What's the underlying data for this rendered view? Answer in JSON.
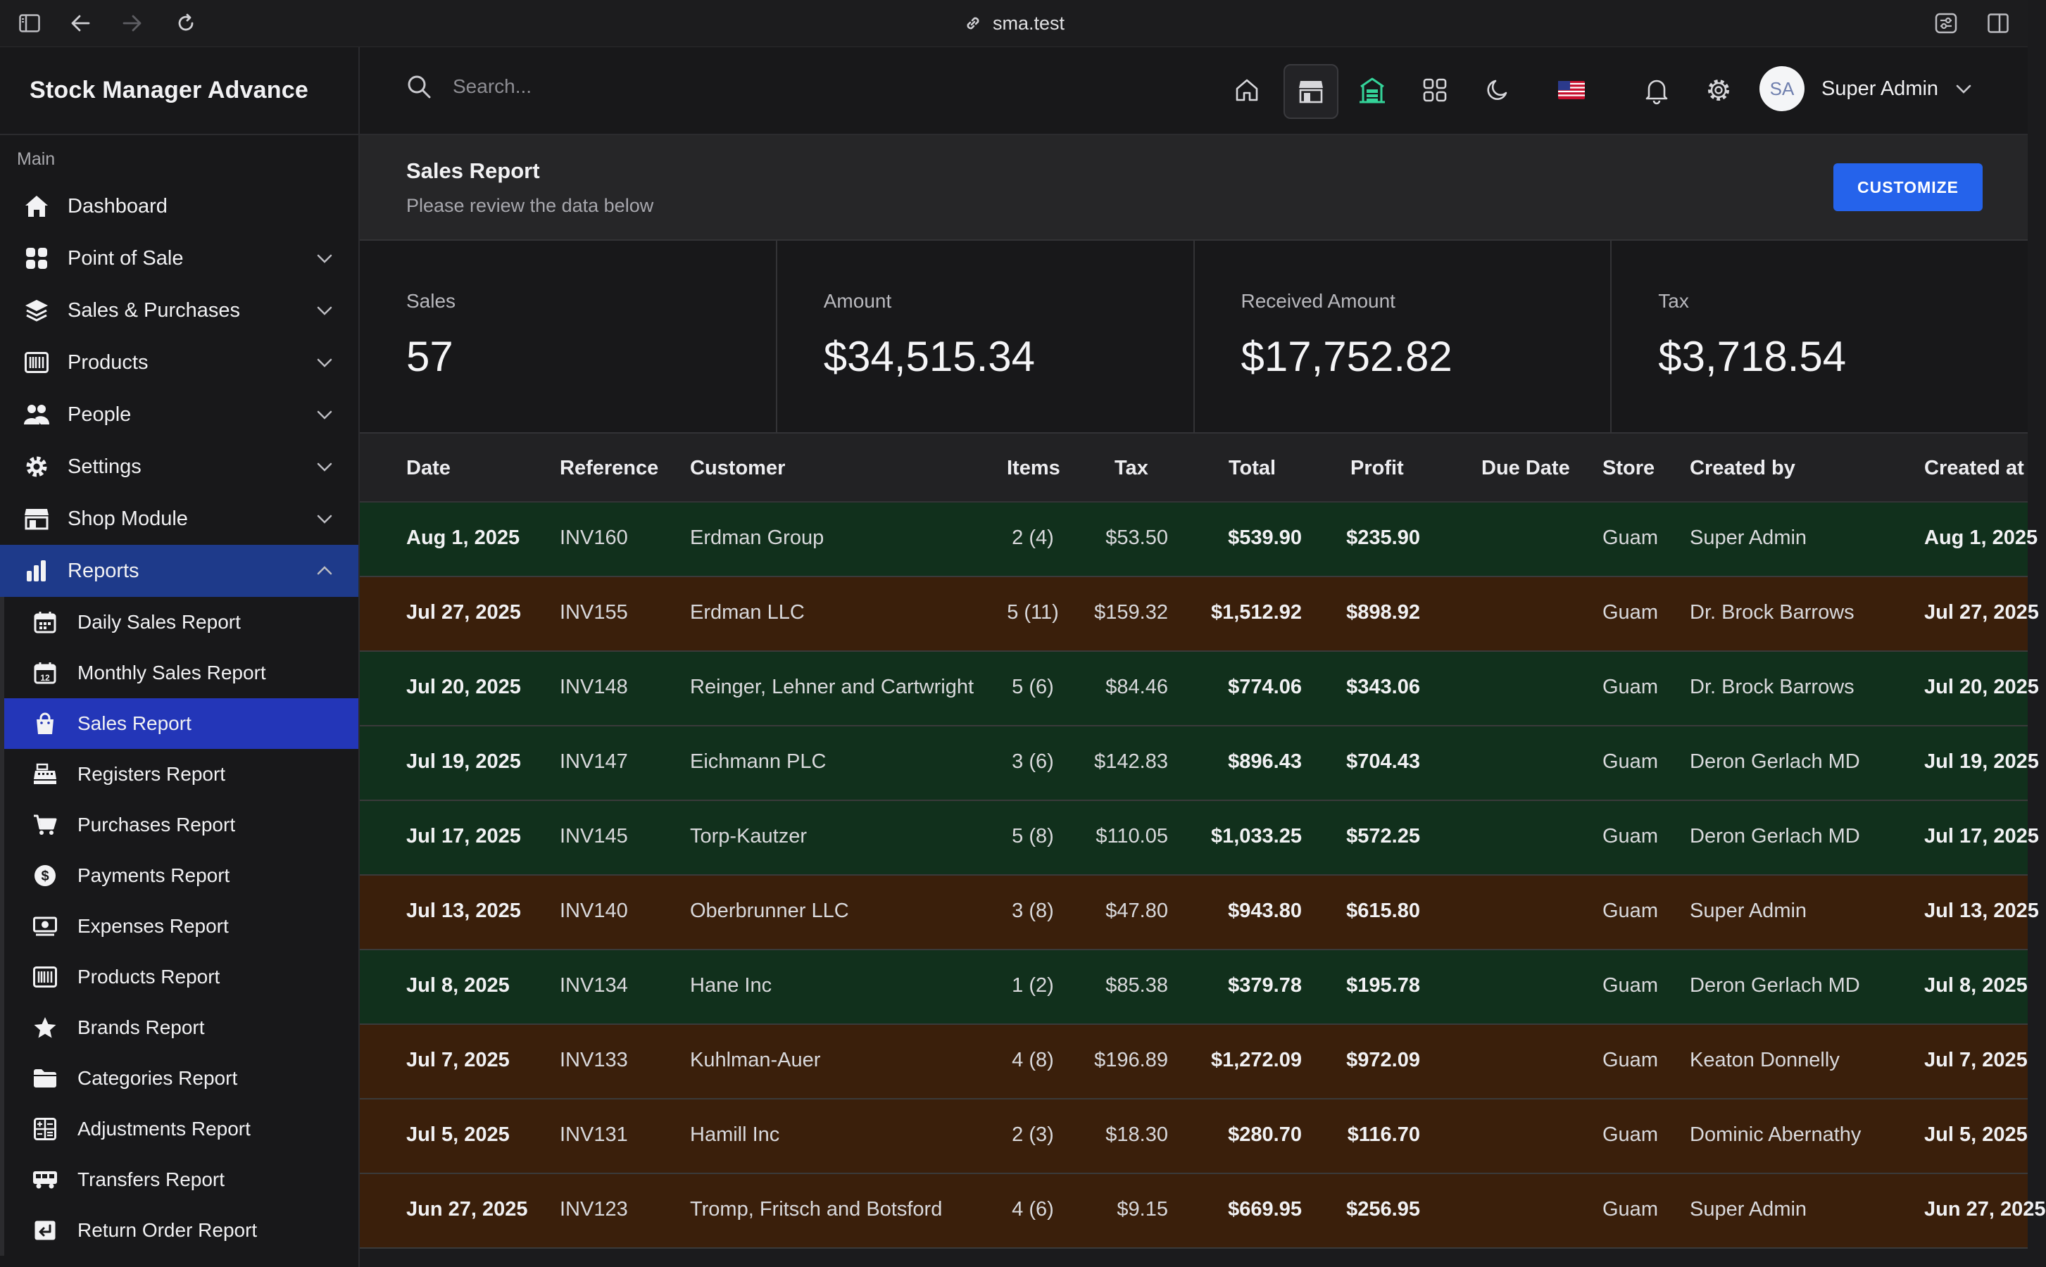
{
  "browser": {
    "url": "sma.test"
  },
  "app": {
    "title": "Stock Manager Advance"
  },
  "sidebar": {
    "section": "Main",
    "items": [
      {
        "label": "Dashboard",
        "icon": "home-icon"
      },
      {
        "label": "Point of Sale",
        "icon": "grid-icon"
      },
      {
        "label": "Sales & Purchases",
        "icon": "layers-icon"
      },
      {
        "label": "Products",
        "icon": "barcode-icon"
      },
      {
        "label": "People",
        "icon": "users-icon"
      },
      {
        "label": "Settings",
        "icon": "gear-icon"
      },
      {
        "label": "Shop Module",
        "icon": "store-icon"
      },
      {
        "label": "Reports",
        "icon": "bar-chart-icon"
      }
    ],
    "reports": [
      {
        "label": "Daily Sales Report",
        "icon": "calendar-icon"
      },
      {
        "label": "Monthly Sales Report",
        "icon": "calendar-12-icon"
      },
      {
        "label": "Sales Report",
        "icon": "shopping-bag-icon"
      },
      {
        "label": "Registers Report",
        "icon": "register-icon"
      },
      {
        "label": "Purchases Report",
        "icon": "cart-icon"
      },
      {
        "label": "Payments Report",
        "icon": "dollar-icon"
      },
      {
        "label": "Expenses Report",
        "icon": "money-icon"
      },
      {
        "label": "Products Report",
        "icon": "barcode-icon"
      },
      {
        "label": "Brands Report",
        "icon": "star-icon"
      },
      {
        "label": "Categories Report",
        "icon": "folder-icon"
      },
      {
        "label": "Adjustments Report",
        "icon": "calculator-icon"
      },
      {
        "label": "Transfers Report",
        "icon": "truck-icon"
      },
      {
        "label": "Return Order Report",
        "icon": "return-icon"
      }
    ]
  },
  "header": {
    "search_placeholder": "Search...",
    "user": {
      "initials": "SA",
      "name": "Super Admin"
    }
  },
  "page": {
    "title": "Sales Report",
    "subtitle": "Please review the data below",
    "customize_label": "CUSTOMIZE"
  },
  "stats": [
    {
      "label": "Sales",
      "value": "57"
    },
    {
      "label": "Amount",
      "value": "$34,515.34"
    },
    {
      "label": "Received Amount",
      "value": "$17,752.82"
    },
    {
      "label": "Tax",
      "value": "$3,718.54"
    }
  ],
  "table": {
    "columns": [
      "Date",
      "Reference",
      "Customer",
      "Items",
      "Tax",
      "Total",
      "Profit",
      "Due Date",
      "Store",
      "Created by",
      "Created at"
    ],
    "row_colors": {
      "paid": "#11301c",
      "partial": "#3a1f0b"
    },
    "rows": [
      {
        "status": "paid",
        "date": "Aug 1, 2025",
        "ref": "INV160",
        "customer": "Erdman Group",
        "items": "2 (4)",
        "tax": "$53.50",
        "total": "$539.90",
        "profit": "$235.90",
        "due": "",
        "store": "Guam",
        "created_by": "Super Admin",
        "created_at": "Aug 1, 2025"
      },
      {
        "status": "partial",
        "date": "Jul 27, 2025",
        "ref": "INV155",
        "customer": "Erdman LLC",
        "items": "5 (11)",
        "tax": "$159.32",
        "total": "$1,512.92",
        "profit": "$898.92",
        "due": "",
        "store": "Guam",
        "created_by": "Dr. Brock Barrows",
        "created_at": "Jul 27, 2025"
      },
      {
        "status": "paid",
        "date": "Jul 20, 2025",
        "ref": "INV148",
        "customer": "Reinger, Lehner and Cartwright",
        "items": "5 (6)",
        "tax": "$84.46",
        "total": "$774.06",
        "profit": "$343.06",
        "due": "",
        "store": "Guam",
        "created_by": "Dr. Brock Barrows",
        "created_at": "Jul 20, 2025"
      },
      {
        "status": "paid",
        "date": "Jul 19, 2025",
        "ref": "INV147",
        "customer": "Eichmann PLC",
        "items": "3 (6)",
        "tax": "$142.83",
        "total": "$896.43",
        "profit": "$704.43",
        "due": "",
        "store": "Guam",
        "created_by": "Deron Gerlach MD",
        "created_at": "Jul 19, 2025"
      },
      {
        "status": "paid",
        "date": "Jul 17, 2025",
        "ref": "INV145",
        "customer": "Torp-Kautzer",
        "items": "5 (8)",
        "tax": "$110.05",
        "total": "$1,033.25",
        "profit": "$572.25",
        "due": "",
        "store": "Guam",
        "created_by": "Deron Gerlach MD",
        "created_at": "Jul 17, 2025"
      },
      {
        "status": "partial",
        "date": "Jul 13, 2025",
        "ref": "INV140",
        "customer": "Oberbrunner LLC",
        "items": "3 (8)",
        "tax": "$47.80",
        "total": "$943.80",
        "profit": "$615.80",
        "due": "",
        "store": "Guam",
        "created_by": "Super Admin",
        "created_at": "Jul 13, 2025"
      },
      {
        "status": "paid",
        "date": "Jul 8, 2025",
        "ref": "INV134",
        "customer": "Hane Inc",
        "items": "1 (2)",
        "tax": "$85.38",
        "total": "$379.78",
        "profit": "$195.78",
        "due": "",
        "store": "Guam",
        "created_by": "Deron Gerlach MD",
        "created_at": "Jul 8, 2025"
      },
      {
        "status": "partial",
        "date": "Jul 7, 2025",
        "ref": "INV133",
        "customer": "Kuhlman-Auer",
        "items": "4 (8)",
        "tax": "$196.89",
        "total": "$1,272.09",
        "profit": "$972.09",
        "due": "",
        "store": "Guam",
        "created_by": "Keaton Donnelly",
        "created_at": "Jul 7, 2025"
      },
      {
        "status": "partial",
        "date": "Jul 5, 2025",
        "ref": "INV131",
        "customer": "Hamill Inc",
        "items": "2 (3)",
        "tax": "$18.30",
        "total": "$280.70",
        "profit": "$116.70",
        "due": "",
        "store": "Guam",
        "created_by": "Dominic Abernathy",
        "created_at": "Jul 5, 2025"
      },
      {
        "status": "partial",
        "date": "Jun 27, 2025",
        "ref": "INV123",
        "customer": "Tromp, Fritsch and Botsford",
        "items": "4 (6)",
        "tax": "$9.15",
        "total": "$669.95",
        "profit": "$256.95",
        "due": "",
        "store": "Guam",
        "created_by": "Super Admin",
        "created_at": "Jun 27, 2025"
      }
    ]
  }
}
